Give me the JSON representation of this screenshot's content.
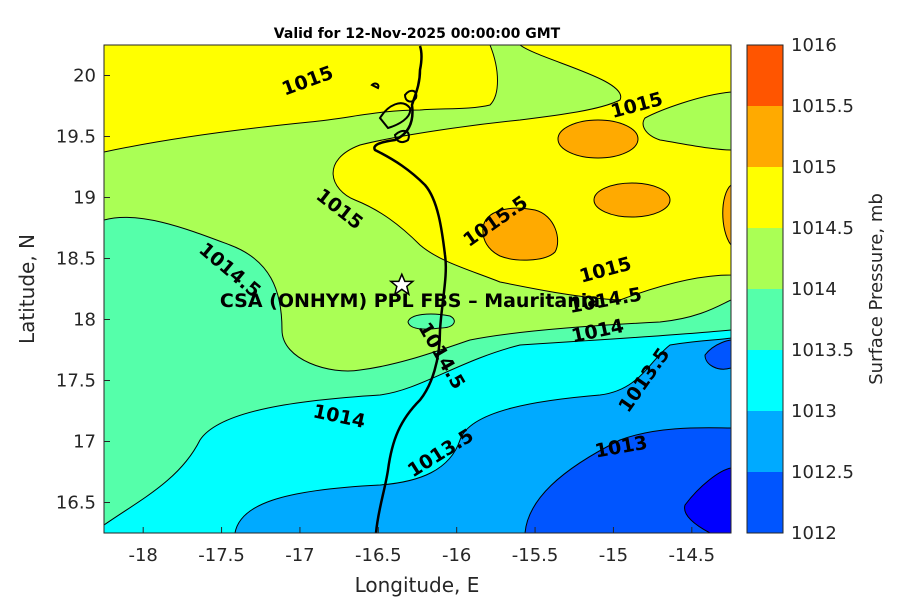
{
  "title": "Valid for 12-Nov-2025 00:00:00 GMT",
  "site_label": "CSA (ONHYM) PPL FBS  – Mauritania",
  "colorbar": {
    "label": "Surface Pressure, mb",
    "levels": [
      "1016",
      "1015.5",
      "1015",
      "1014.5",
      "1014",
      "1013.5",
      "1013",
      "1012.5",
      "1012"
    ],
    "colors": [
      "#ff5500",
      "#ffaa00",
      "#ffff00",
      "#aaff55",
      "#55ffaa",
      "#00ffff",
      "#00aaff",
      "#0055ff",
      "#0000ff"
    ]
  },
  "chart_data": {
    "type": "contour-map",
    "title": "Valid for 12-Nov-2025 00:00:00 GMT",
    "xlabel": "Longitude, E",
    "ylabel": "Latitude, N",
    "xlim": [
      -18.25,
      -14.25
    ],
    "ylim": [
      16.25,
      20.25
    ],
    "x_ticks": [
      "-18",
      "-17.5",
      "-17",
      "-16.5",
      "-16",
      "-15.5",
      "-15",
      "-14.5"
    ],
    "y_ticks": [
      "16.5",
      "17",
      "17.5",
      "18",
      "18.5",
      "19",
      "19.5",
      "20"
    ],
    "variable": "Surface Pressure, mb",
    "contour_levels": [
      1012,
      1012.5,
      1013,
      1013.5,
      1014,
      1014.5,
      1015,
      1015.5,
      1016
    ],
    "contour_labels": [
      {
        "text": "1015",
        "lon": -16.95,
        "lat": 19.95
      },
      {
        "text": "1015",
        "lon": -14.85,
        "lat": 19.75
      },
      {
        "text": "1015",
        "lon": -16.75,
        "lat": 18.9
      },
      {
        "text": "1015.5",
        "lon": -15.75,
        "lat": 18.8
      },
      {
        "text": "1014.5",
        "lon": -17.45,
        "lat": 18.4
      },
      {
        "text": "1015",
        "lon": -15.05,
        "lat": 18.4
      },
      {
        "text": "1014.5",
        "lon": -15.05,
        "lat": 18.15
      },
      {
        "text": "1014",
        "lon": -15.1,
        "lat": 17.9
      },
      {
        "text": "1014.5",
        "lon": -16.1,
        "lat": 17.7
      },
      {
        "text": "1013.5",
        "lon": -14.8,
        "lat": 17.5
      },
      {
        "text": "1014",
        "lon": -16.75,
        "lat": 17.2
      },
      {
        "text": "1013.5",
        "lon": -16.1,
        "lat": 16.9
      },
      {
        "text": "1013",
        "lon": -14.95,
        "lat": 16.95
      }
    ],
    "site": {
      "name": "CSA (ONHYM) PPL FBS  – Mauritania",
      "lon": -16.35,
      "lat": 18.28
    },
    "grid": false
  }
}
